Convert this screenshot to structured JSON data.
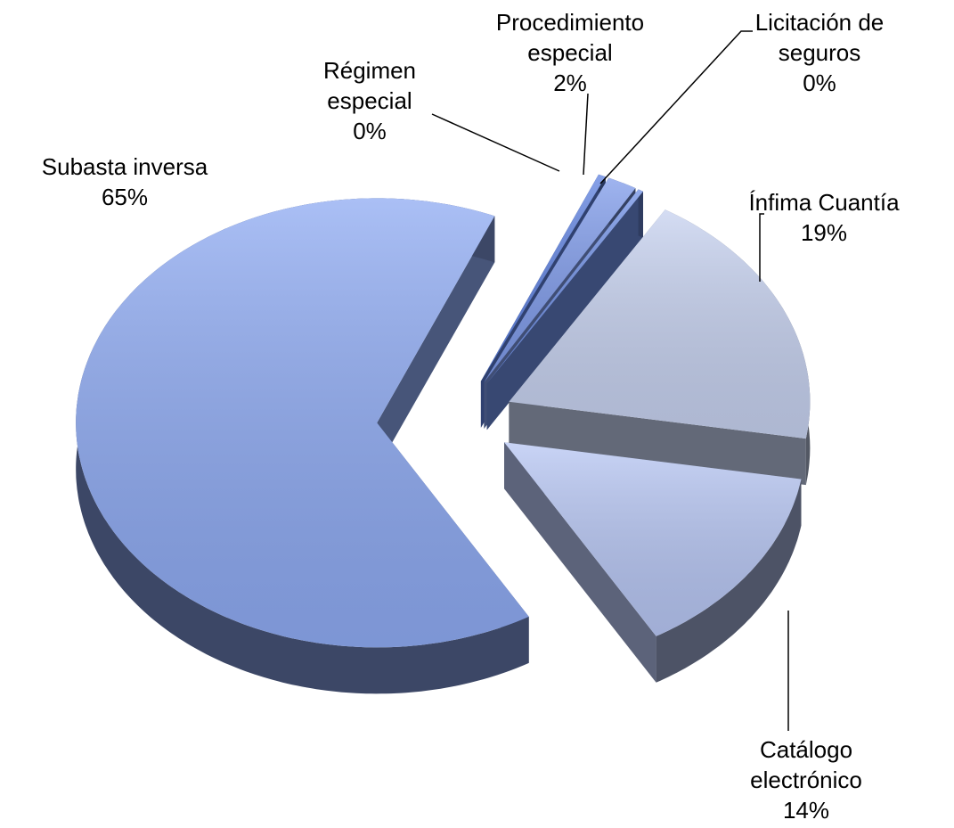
{
  "chart_data": {
    "type": "pie",
    "categories": [
      "Régimen especial",
      "Procedimiento especial",
      "Licitación de seguros",
      "Ínfima Cuantía",
      "Catálogo electrónico",
      "Subasta inversa"
    ],
    "values": [
      0.4,
      1.6,
      0.3,
      19,
      14,
      65
    ],
    "value_labels": [
      "0%",
      "2%",
      "0%",
      "19%",
      "14%",
      "65%"
    ],
    "colors": [
      "#5f82e0",
      "#7f9bea",
      "#7090e4",
      "#c6d1ef",
      "#b7c6f3",
      "#8eaaf2"
    ]
  }
}
